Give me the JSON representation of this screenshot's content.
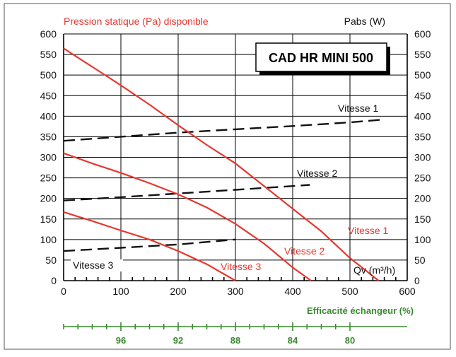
{
  "chart_data": {
    "type": "line",
    "model_name": "CAD HR MINI 500",
    "left_axis_title": "Pression statique (Pa) disponible",
    "right_axis_title": "Pabs (W)",
    "x_axis_title": "Qv (m³/h)",
    "xlim": [
      0,
      600
    ],
    "ylim": [
      0,
      600
    ],
    "y2lim": [
      0,
      600
    ],
    "x_ticks": [
      0,
      100,
      200,
      300,
      400,
      500,
      600
    ],
    "y_ticks": [
      0,
      50,
      100,
      150,
      200,
      250,
      300,
      350,
      400,
      450,
      500,
      550,
      600
    ],
    "y2_ticks": [
      0,
      50,
      100,
      150,
      200,
      250,
      300,
      350,
      400,
      450,
      500,
      550,
      600
    ],
    "grid": true,
    "pressure_series": [
      {
        "name": "Vitesse 1",
        "color": "#e8372e",
        "x": [
          0,
          50,
          100,
          150,
          200,
          250,
          300,
          350,
          400,
          450,
          500,
          550
        ],
        "y": [
          565,
          520,
          475,
          428,
          378,
          330,
          285,
          230,
          175,
          120,
          55,
          0
        ]
      },
      {
        "name": "Vitesse 2",
        "color": "#e8372e",
        "x": [
          0,
          50,
          100,
          150,
          200,
          250,
          300,
          350,
          400,
          432
        ],
        "y": [
          310,
          285,
          262,
          237,
          210,
          178,
          138,
          90,
          32,
          0
        ]
      },
      {
        "name": "Vitesse 3",
        "color": "#e8372e",
        "x": [
          0,
          50,
          100,
          150,
          200,
          250,
          300
        ],
        "y": [
          167,
          145,
          122,
          100,
          72,
          40,
          0
        ]
      }
    ],
    "power_series": [
      {
        "name": "Vitesse 1",
        "color": "#111111",
        "x": [
          0,
          100,
          200,
          300,
          400,
          500,
          560
        ],
        "y": [
          340,
          350,
          360,
          368,
          376,
          385,
          392
        ]
      },
      {
        "name": "Vitesse 2",
        "color": "#111111",
        "x": [
          0,
          100,
          200,
          300,
          400,
          430
        ],
        "y": [
          195,
          203,
          212,
          221,
          230,
          233
        ]
      },
      {
        "name": "Vitesse 3",
        "color": "#111111",
        "x": [
          0,
          100,
          200,
          300
        ],
        "y": [
          72,
          80,
          88,
          100
        ]
      }
    ],
    "efficiency_axis": {
      "title": "Efficacité échangeur (%)",
      "ticks": [
        {
          "x": 100,
          "label": "96"
        },
        {
          "x": 200,
          "label": "92"
        },
        {
          "x": 300,
          "label": "88"
        },
        {
          "x": 400,
          "label": "84"
        },
        {
          "x": 500,
          "label": "80"
        }
      ],
      "color": "#3a8a2f"
    }
  }
}
